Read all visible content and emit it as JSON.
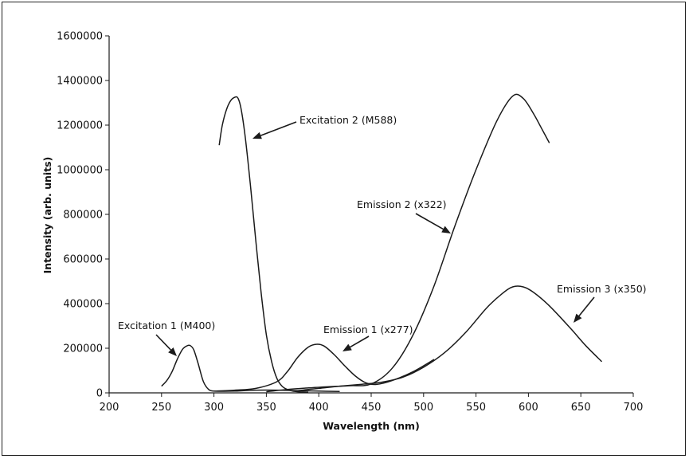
{
  "chart_data": {
    "type": "line",
    "title": "",
    "xlabel": "Wavelength (nm)",
    "ylabel": "Intensity (arb. units)",
    "xlim": [
      200,
      700
    ],
    "ylim": [
      0,
      1600000
    ],
    "xticks": [
      "200",
      "250",
      "300",
      "350",
      "400",
      "450",
      "500",
      "550",
      "600",
      "650",
      "700"
    ],
    "yticks": [
      "0",
      "200000",
      "400000",
      "600000",
      "800000",
      "1000000",
      "1200000",
      "1400000",
      "1600000"
    ],
    "grid": false,
    "legend": "none",
    "line_color": "#1a1a1a",
    "series": [
      {
        "name": "Excitation 1 (M400)",
        "x": [
          250,
          255,
          260,
          265,
          270,
          275,
          278,
          281,
          285,
          290,
          295,
          300,
          310,
          320,
          340,
          360,
          380,
          400,
          420
        ],
        "y": [
          30000,
          55000,
          95000,
          150000,
          195000,
          212000,
          210000,
          190000,
          130000,
          50000,
          15000,
          8000,
          7000,
          8000,
          12000,
          12000,
          10000,
          8000,
          6000
        ]
      },
      {
        "name": "Excitation 2 (M588)",
        "x": [
          305,
          308,
          312,
          316,
          320,
          323,
          326,
          330,
          335,
          340,
          345,
          350,
          355,
          360,
          365,
          370,
          375,
          380,
          385,
          390
        ],
        "y": [
          1110000,
          1200000,
          1270000,
          1310000,
          1325000,
          1320000,
          1270000,
          1140000,
          920000,
          680000,
          450000,
          260000,
          140000,
          65000,
          30000,
          15000,
          8000,
          5000,
          4000,
          3000
        ]
      },
      {
        "name": "Emission 1 (x277)",
        "x": [
          300,
          320,
          340,
          360,
          370,
          380,
          390,
          398,
          405,
          415,
          425,
          435,
          445,
          455,
          470,
          490,
          510
        ],
        "y": [
          8000,
          12000,
          20000,
          50000,
          95000,
          160000,
          205000,
          218000,
          210000,
          170000,
          120000,
          75000,
          45000,
          38000,
          55000,
          95000,
          150000
        ]
      },
      {
        "name": "Emission 2 (x322)",
        "x": [
          350,
          370,
          390,
          410,
          430,
          450,
          470,
          490,
          510,
          530,
          550,
          570,
          585,
          595,
          605,
          612,
          620
        ],
        "y": [
          5000,
          15000,
          22000,
          28000,
          32000,
          40000,
          110000,
          260000,
          480000,
          750000,
          1000000,
          1220000,
          1330000,
          1320000,
          1250000,
          1190000,
          1120000
        ]
      },
      {
        "name": "Emission 3 (x350)",
        "x": [
          380,
          400,
          420,
          440,
          460,
          480,
          500,
          520,
          540,
          560,
          575,
          585,
          595,
          605,
          620,
          640,
          655,
          670
        ],
        "y": [
          10000,
          20000,
          30000,
          38000,
          48000,
          70000,
          115000,
          180000,
          270000,
          380000,
          445000,
          475000,
          475000,
          450000,
          390000,
          290000,
          210000,
          140000
        ]
      }
    ],
    "annotations": [
      {
        "text": "Excitation 1 (M400)",
        "series": 0
      },
      {
        "text": "Excitation 2 (M588)",
        "series": 1
      },
      {
        "text": "Emission 1 (x277)",
        "series": 2
      },
      {
        "text": "Emission 2 (x322)",
        "series": 3
      },
      {
        "text": "Emission 3 (x350)",
        "series": 4
      }
    ]
  }
}
